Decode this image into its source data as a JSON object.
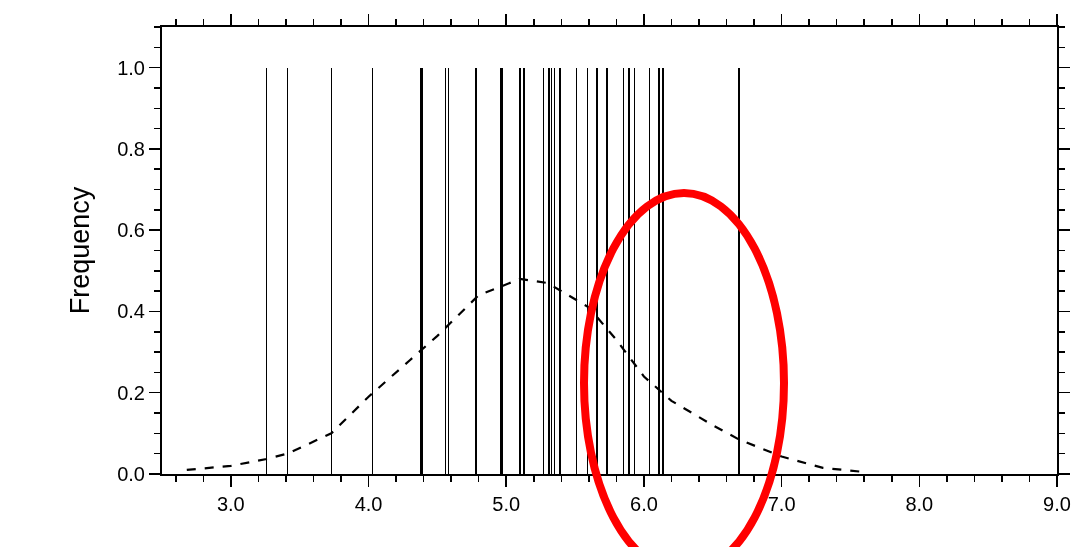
{
  "chart_data": {
    "type": "bar",
    "ylabel": "Frequency",
    "xlim": [
      2.5,
      9.0
    ],
    "ylim": [
      0,
      1.1
    ],
    "xticks": [
      {
        "value": 3,
        "label": "3.0"
      },
      {
        "value": 4,
        "label": "4.0"
      },
      {
        "value": 5,
        "label": "5.0"
      },
      {
        "value": 6,
        "label": "6.0"
      },
      {
        "value": 7,
        "label": "7.0"
      },
      {
        "value": 8,
        "label": "8.0"
      },
      {
        "value": 9,
        "label": "9.0"
      }
    ],
    "yticks": [
      {
        "value": 0,
        "label": "0.0"
      },
      {
        "value": 0.2,
        "label": "0.2"
      },
      {
        "value": 0.4,
        "label": "0.4"
      },
      {
        "value": 0.6,
        "label": "0.6"
      },
      {
        "value": 0.8,
        "label": "0.8"
      },
      {
        "value": 1,
        "label": "1.0"
      }
    ],
    "grid": false,
    "legend": false,
    "marker": "none",
    "series": [
      {
        "color": "#000000",
        "x": [
          3.26,
          3.41,
          3.73,
          4.03,
          4.38,
          4.39,
          4.56,
          4.58,
          4.78,
          4.96,
          4.97,
          5.1,
          5.13,
          5.27,
          5.31,
          5.33,
          5.35,
          5.39,
          5.51,
          5.59,
          5.66,
          5.73,
          5.85,
          5.89,
          5.93,
          6.04,
          6.11,
          6.14,
          6.69
        ],
        "values": [
          1,
          1,
          1,
          1,
          1,
          1,
          1,
          1,
          1,
          1,
          1,
          1,
          1,
          1,
          1,
          1,
          1,
          1,
          1,
          1,
          1,
          1,
          1,
          1,
          1,
          1,
          1,
          1,
          1
        ]
      },
      {
        "type": "line",
        "color": "#000000",
        "line_style": "dashed",
        "x": [
          2.68,
          3.0,
          3.26,
          3.41,
          3.73,
          4.0,
          4.3,
          4.5,
          4.8,
          5.1,
          5.3,
          5.5,
          5.6,
          5.8,
          6.0,
          6.2,
          6.5,
          6.69,
          7.0,
          7.3,
          7.6
        ],
        "values": [
          0.01,
          0.02,
          0.037,
          0.05,
          0.1,
          0.19,
          0.28,
          0.34,
          0.44,
          0.48,
          0.47,
          0.43,
          0.41,
          0.33,
          0.24,
          0.18,
          0.12,
          0.085,
          0.043,
          0.015,
          0.005
        ]
      }
    ]
  }
}
